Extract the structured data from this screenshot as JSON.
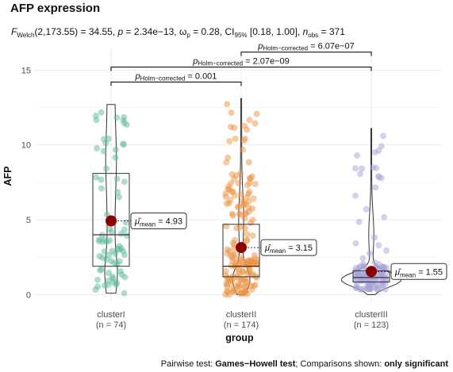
{
  "chart_data": {
    "type": "violin-box-scatter",
    "title": "AFP expression",
    "subtitle_stat": {
      "test": "Welch",
      "df": "(2,173.55)",
      "statistic": "34.55",
      "p": "2.34e−13",
      "effect_symbol": "ω",
      "effect_sub": "p",
      "effect": "0.28",
      "ci_label": "CI",
      "ci_sub": "95%",
      "ci": "[0.18, 1.00]",
      "n_label": "n",
      "n_sub": "obs",
      "n": "371"
    },
    "xlabel": "group",
    "ylabel": "AFP",
    "ylim": [
      -0.5,
      16.5
    ],
    "yticks": [
      0,
      5,
      10,
      15
    ],
    "grid": true,
    "groups": [
      {
        "name": "clusterI",
        "n_label": "(n = 74)",
        "n": 74,
        "color": "#5fb99c",
        "mean": 4.93,
        "mean_label": "4.93",
        "q1": 1.9,
        "median": 4.0,
        "q3": 8.1,
        "min": 0.1,
        "max": 12.7
      },
      {
        "name": "clusterII",
        "n_label": "(n = 174)",
        "n": 174,
        "color": "#ec9444",
        "mean": 3.15,
        "mean_label": "3.15",
        "q1": 1.2,
        "median": 1.9,
        "q3": 4.7,
        "min": 0.0,
        "max": 13.1
      },
      {
        "name": "clusterIII",
        "n_label": "(n = 123)",
        "n": 123,
        "color": "#a7a4d8",
        "mean": 1.55,
        "mean_label": "1.55",
        "q1": 0.85,
        "median": 1.15,
        "q3": 1.6,
        "min": 0.0,
        "max": 11.1
      }
    ],
    "mean_prefix": "μ̂",
    "mean_sub": "mean",
    "pairwise": [
      {
        "from": 0,
        "to": 1,
        "y": 14.2,
        "p_label": "p",
        "sub": "Holm−corrected",
        "value": "= 0.001"
      },
      {
        "from": 0,
        "to": 2,
        "y": 15.2,
        "p_label": "p",
        "sub": "Holm−corrected",
        "value": "= 2.07e−09"
      },
      {
        "from": 1,
        "to": 2,
        "y": 16.2,
        "p_label": "p",
        "sub": "Holm−corrected",
        "value": "= 6.07e−07"
      }
    ],
    "caption_prefix": "Pairwise test: ",
    "caption_test": "Games−Howell test",
    "caption_mid": "; Comparisons shown: ",
    "caption_shown": "only significant",
    "mean_point_color": "#8b0000"
  }
}
